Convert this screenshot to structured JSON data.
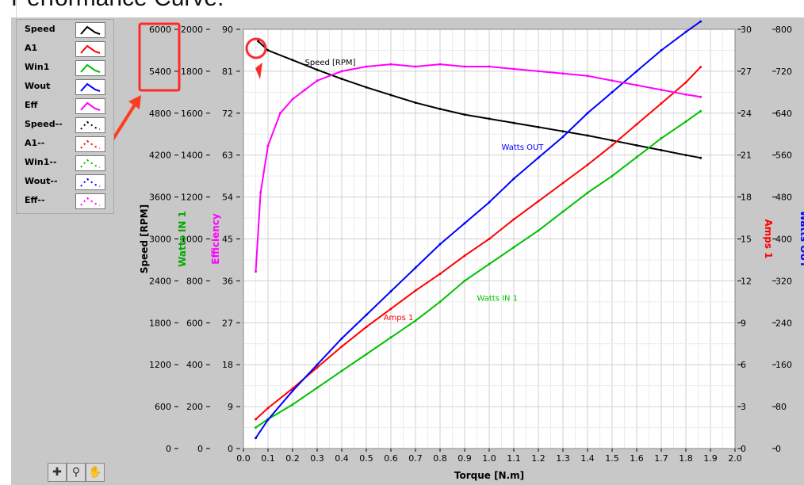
{
  "title": "Performance Curve:",
  "legend": [
    {
      "label": "Speed",
      "color": "#000000",
      "style": "solid"
    },
    {
      "label": "A1",
      "color": "#ff0000",
      "style": "solid"
    },
    {
      "label": "Win1",
      "color": "#00c000",
      "style": "solid"
    },
    {
      "label": "Wout",
      "color": "#0000ff",
      "style": "solid"
    },
    {
      "label": "Eff",
      "color": "#ff00ff",
      "style": "solid"
    },
    {
      "label": "Speed--",
      "color": "#000000",
      "style": "dots"
    },
    {
      "label": "A1--",
      "color": "#ff0000",
      "style": "dots"
    },
    {
      "label": "Win1--",
      "color": "#00c000",
      "style": "dots"
    },
    {
      "label": "Wout--",
      "color": "#0000ff",
      "style": "dots"
    },
    {
      "label": "Eff--",
      "color": "#ff00ff",
      "style": "dots"
    }
  ],
  "toolbar": {
    "icons": [
      "cursor-move-icon",
      "zoom-icon",
      "pan-hand-icon"
    ]
  },
  "chart_data": {
    "type": "line",
    "xlabel": "Torque [N.m]",
    "xlim": [
      0,
      2.0
    ],
    "xticks": [
      "0.0",
      "0.1",
      "0.2",
      "0.3",
      "0.4",
      "0.5",
      "0.6",
      "0.7",
      "0.8",
      "0.9",
      "1.0",
      "1.1",
      "1.2",
      "1.3",
      "1.4",
      "1.5",
      "1.6",
      "1.7",
      "1.8",
      "1.9",
      "2.0"
    ],
    "grid": true,
    "axes": [
      {
        "label": "Speed [RPM]",
        "color": "#000000",
        "ticks": [
          "6000",
          "5400",
          "4800",
          "4200",
          "3600",
          "3000",
          "2400",
          "1800",
          "1200",
          "600",
          "0"
        ],
        "lim": [
          0,
          6000
        ]
      },
      {
        "label": "Watts IN 1",
        "color": "#00aa00",
        "ticks": [
          "2000",
          "1800",
          "1600",
          "1400",
          "1200",
          "1000",
          "800",
          "600",
          "400",
          "200",
          "0"
        ],
        "lim": [
          0,
          2000
        ]
      },
      {
        "label": "Efficiency",
        "color": "#ff00ff",
        "ticks": [
          "90",
          "81",
          "72",
          "63",
          "54",
          "45",
          "36",
          "27",
          "18",
          "9",
          "0"
        ],
        "lim": [
          0,
          90
        ]
      },
      {
        "label": "Amps 1",
        "color": "#ff0000",
        "ticks": [
          "30",
          "27",
          "24",
          "21",
          "18",
          "15",
          "12",
          "9",
          "6",
          "3",
          "0"
        ],
        "lim": [
          0,
          30
        ]
      },
      {
        "label": "Watts OUT",
        "color": "#0000ff",
        "ticks": [
          "800",
          "720",
          "640",
          "560",
          "480",
          "400",
          "320",
          "240",
          "160",
          "80",
          "0"
        ],
        "lim": [
          0,
          800
        ]
      }
    ],
    "series": [
      {
        "name": "Speed [RPM]",
        "axis": 0,
        "color": "#000000",
        "x": [
          0.06,
          0.1,
          0.2,
          0.3,
          0.4,
          0.5,
          0.6,
          0.7,
          0.8,
          0.9,
          1.0,
          1.1,
          1.2,
          1.3,
          1.4,
          1.5,
          1.6,
          1.7,
          1.8,
          1.86
        ],
        "y": [
          5830,
          5700,
          5560,
          5420,
          5290,
          5170,
          5060,
          4950,
          4860,
          4780,
          4720,
          4660,
          4600,
          4540,
          4480,
          4410,
          4340,
          4270,
          4200,
          4160
        ]
      },
      {
        "name": "Amps 1",
        "axis": 3,
        "color": "#ff0000",
        "x": [
          0.05,
          0.1,
          0.2,
          0.3,
          0.4,
          0.5,
          0.6,
          0.7,
          0.8,
          0.9,
          1.0,
          1.1,
          1.2,
          1.3,
          1.4,
          1.5,
          1.6,
          1.7,
          1.8,
          1.86
        ],
        "y": [
          2.1,
          2.9,
          4.3,
          5.8,
          7.3,
          8.7,
          10.0,
          11.3,
          12.5,
          13.8,
          15.0,
          16.4,
          17.7,
          19.0,
          20.3,
          21.7,
          23.2,
          24.7,
          26.2,
          27.3
        ]
      },
      {
        "name": "Watts IN 1",
        "axis": 1,
        "color": "#00c000",
        "x": [
          0.05,
          0.1,
          0.2,
          0.3,
          0.4,
          0.5,
          0.6,
          0.7,
          0.8,
          0.9,
          1.0,
          1.1,
          1.2,
          1.3,
          1.4,
          1.5,
          1.6,
          1.7,
          1.8,
          1.86
        ],
        "y": [
          100,
          140,
          210,
          290,
          370,
          450,
          530,
          610,
          700,
          800,
          880,
          960,
          1040,
          1130,
          1220,
          1300,
          1390,
          1480,
          1560,
          1610
        ]
      },
      {
        "name": "Watts OUT",
        "axis": 4,
        "color": "#0000ff",
        "x": [
          0.05,
          0.1,
          0.2,
          0.3,
          0.4,
          0.5,
          0.6,
          0.7,
          0.8,
          0.9,
          1.0,
          1.1,
          1.2,
          1.3,
          1.4,
          1.5,
          1.6,
          1.7,
          1.8,
          1.86
        ],
        "y": [
          20,
          55,
          110,
          160,
          210,
          255,
          300,
          345,
          390,
          430,
          470,
          515,
          555,
          595,
          640,
          680,
          720,
          760,
          795,
          815
        ]
      },
      {
        "name": "Efficiency",
        "axis": 2,
        "color": "#ff00ff",
        "x": [
          0.05,
          0.07,
          0.1,
          0.15,
          0.2,
          0.25,
          0.3,
          0.4,
          0.5,
          0.6,
          0.7,
          0.8,
          0.9,
          1.0,
          1.1,
          1.2,
          1.3,
          1.4,
          1.5,
          1.6,
          1.7,
          1.8,
          1.86
        ],
        "y": [
          38,
          55,
          65,
          72,
          75,
          77,
          79,
          81,
          82,
          82.5,
          82,
          82.5,
          82,
          82,
          81.5,
          81,
          80.5,
          80,
          79,
          78,
          77,
          76,
          75.5
        ]
      }
    ],
    "annotations": [
      {
        "text": "Speed [RPM]",
        "x": 0.25,
        "y": 5490,
        "axis": 0,
        "color": "#000000"
      },
      {
        "text": "Watts OUT",
        "x": 1.05,
        "y": 570,
        "axis": 4,
        "color": "#0000ff"
      },
      {
        "text": "Amps 1",
        "x": 0.57,
        "y": 9.2,
        "axis": 3,
        "color": "#ff0000"
      },
      {
        "text": "Watts IN 1",
        "x": 0.95,
        "y": 705,
        "axis": 1,
        "color": "#00c000"
      }
    ]
  }
}
